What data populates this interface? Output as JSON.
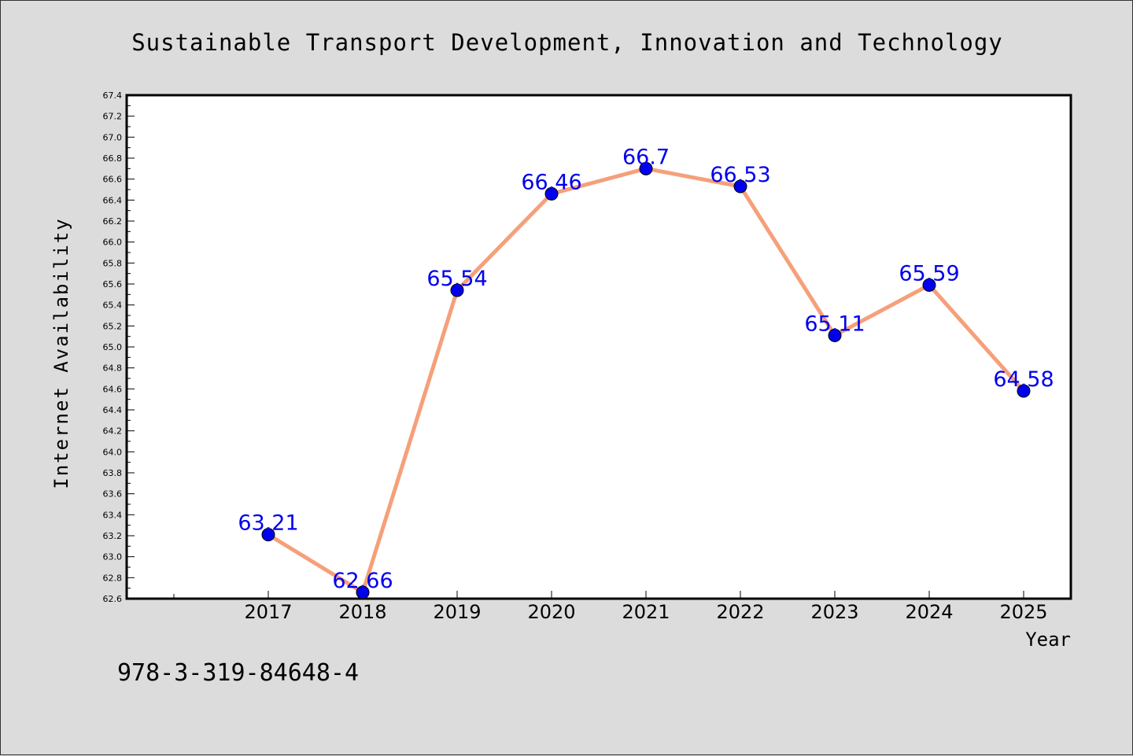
{
  "chart_data": {
    "type": "line",
    "title": "Sustainable Transport Development, Innovation and Technology",
    "xlabel": "Year",
    "ylabel": "Internet Availability",
    "categories": [
      "2017",
      "2018",
      "2019",
      "2020",
      "2021",
      "2022",
      "2023",
      "2024",
      "2025"
    ],
    "series": [
      {
        "values": [
          63.21,
          62.66,
          65.54,
          66.46,
          66.7,
          66.53,
          65.11,
          65.59,
          64.58
        ],
        "labels": [
          "63.21",
          "62.66",
          "65.54",
          "66.46",
          "66.7",
          "66.53",
          "65.11",
          "65.59",
          "64.58"
        ]
      }
    ],
    "ylim": [
      62.6,
      67.4
    ],
    "yticks": [
      "62.6",
      "62.8",
      "63.0",
      "63.2",
      "63.4",
      "63.6",
      "63.8",
      "64.0",
      "64.2",
      "64.4",
      "64.6",
      "64.8",
      "65.0",
      "65.2",
      "65.4",
      "65.6",
      "65.8",
      "66.0",
      "66.2",
      "66.4",
      "66.6",
      "66.8",
      "67.0",
      "67.2",
      "67.4"
    ],
    "grid": false,
    "line_color": "#f5a07a",
    "marker_color": "#0000ee",
    "label_color": "#0000ee"
  },
  "footer": {
    "isbn": "978-3-319-84648-4"
  }
}
